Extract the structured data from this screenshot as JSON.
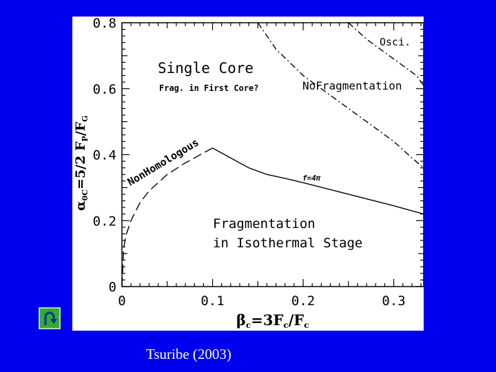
{
  "colors": {
    "background": "#0000ee",
    "panel": "#ffffff",
    "ink": "#000000",
    "button": "#33aa33",
    "citation_text": "#ffffff"
  },
  "back_button": {
    "icon": "u-turn-arrow-icon"
  },
  "citation": "Tsuribe (2003)",
  "chart_data": {
    "type": "line",
    "xlim": [
      0,
      0.333
    ],
    "ylim": [
      0,
      0.8
    ],
    "x_ticks": [
      "0",
      "0.1",
      "0.2",
      "0.3"
    ],
    "y_ticks": [
      "0",
      "0.2",
      "0.4",
      "0.6",
      "0.8"
    ],
    "xlabel": {
      "main": "β",
      "sub": "c",
      "rest": "=3F",
      "rest_sub": "c",
      "tail": "/F",
      "tail_sub": "c"
    },
    "ylabel": {
      "main": "α",
      "sub": "0C",
      "rest": "=5/2 F",
      "rest_sub": "P",
      "tail": "/F",
      "tail_sub": "G"
    },
    "grid": false,
    "annotations": {
      "single_core": "Single Core",
      "frag_first_core": "Frag. in First Core?",
      "no_fragmentation": "NoFragmentation",
      "osci": "Osci.",
      "non_homologous": "NonHomologous",
      "f_label": "f=4π",
      "fragmentation_line1": "Fragmentation",
      "fragmentation_line2": "in Isothermal Stage"
    },
    "series": [
      {
        "style": "long-dash",
        "x": [
          0,
          0.002,
          0.005,
          0.01,
          0.02,
          0.03,
          0.05,
          0.07,
          0.09,
          0.1
        ],
        "y": [
          0,
          0.12,
          0.16,
          0.2,
          0.255,
          0.29,
          0.34,
          0.375,
          0.405,
          0.42
        ]
      },
      {
        "style": "solid",
        "x": [
          0.1,
          0.12,
          0.14,
          0.16,
          0.18,
          0.2,
          0.25,
          0.3,
          0.333
        ],
        "y": [
          0.42,
          0.39,
          0.36,
          0.34,
          0.328,
          0.315,
          0.28,
          0.245,
          0.22
        ]
      },
      {
        "style": "dash-dot",
        "x": [
          0.15,
          0.17,
          0.2,
          0.23,
          0.26,
          0.28,
          0.3,
          0.32,
          0.333
        ],
        "y": [
          0.8,
          0.72,
          0.64,
          0.58,
          0.52,
          0.48,
          0.44,
          0.39,
          0.36
        ]
      },
      {
        "style": "dash-dot",
        "x": [
          0.25,
          0.27,
          0.29,
          0.31,
          0.325,
          0.333
        ],
        "y": [
          0.8,
          0.75,
          0.71,
          0.67,
          0.64,
          0.61
        ]
      }
    ]
  }
}
